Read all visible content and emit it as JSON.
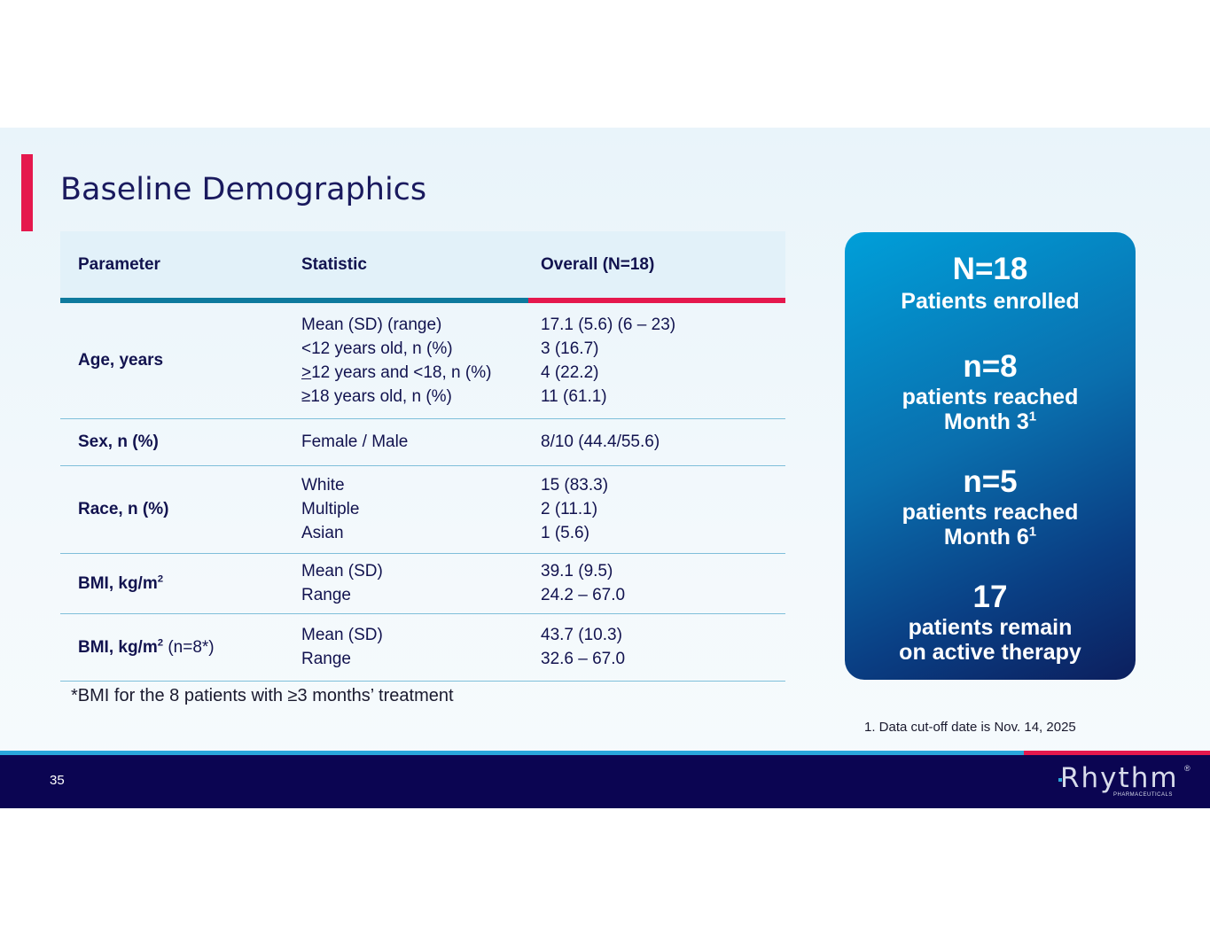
{
  "slide": {
    "title": "Baseline Demographics",
    "page_number": "35",
    "bmi_footnote": "*BMI for the 8 patients with ≥3 months’ treatment",
    "cutoff_note": "1. Data cut-off date is Nov. 14, 2025"
  },
  "table": {
    "headers": [
      "Parameter",
      "Statistic",
      "Overall (N=18)"
    ],
    "age": {
      "param": "Age, years",
      "stats": [
        "Mean (SD) (range)",
        "<12 years old, n (%)",
        "12 years and <18, n (%)",
        "≥18 years old, n (%)"
      ],
      "stat3_prefix": ">",
      "values": [
        "17.1 (5.6) (6 – 23)",
        "3 (16.7)",
        "4 (22.2)",
        "11 (61.1)"
      ]
    },
    "sex": {
      "param": "Sex, n (%)",
      "stats": [
        "Female / Male"
      ],
      "values": [
        "8/10 (44.4/55.6)"
      ]
    },
    "race": {
      "param": "Race, n (%)",
      "stats": [
        "White",
        "Multiple",
        "Asian"
      ],
      "values": [
        "15 (83.3)",
        "2 (11.1)",
        "1 (5.6)"
      ]
    },
    "bmi": {
      "param": "BMI, kg/m",
      "param_sup": "2",
      "stats": [
        "Mean (SD)",
        "Range"
      ],
      "values": [
        "39.1 (9.5)",
        "24.2 – 67.0"
      ]
    },
    "bmi_subset": {
      "param": "BMI, kg/m",
      "param_sup": "2",
      "param_suffix": " (n=8*)",
      "stats": [
        "Mean (SD)",
        "Range"
      ],
      "values": [
        "43.7 (10.3)",
        "32.6  – 67.0"
      ]
    }
  },
  "stats_box": {
    "enrolled_value": "N=18",
    "enrolled_text": "Patients enrolled",
    "month3_value": "n=8",
    "month3_line1": "patients reached",
    "month3_line2": "Month 3",
    "month3_sup": "1",
    "month6_value": "n=5",
    "month6_line1": "patients reached",
    "month6_line2": "Month 6",
    "month6_sup": "1",
    "active_value": "17",
    "active_line1": "patients remain",
    "active_line2": "on active therapy"
  },
  "logo": {
    "word": "Rhythm",
    "sub": "PHARMACEUTICALS",
    "reg": "®"
  },
  "colors": {
    "accent_red": "#e5184d",
    "navy": "#0b0552",
    "teal": "#0e7a9e",
    "light_blue": "#2aa7db"
  }
}
